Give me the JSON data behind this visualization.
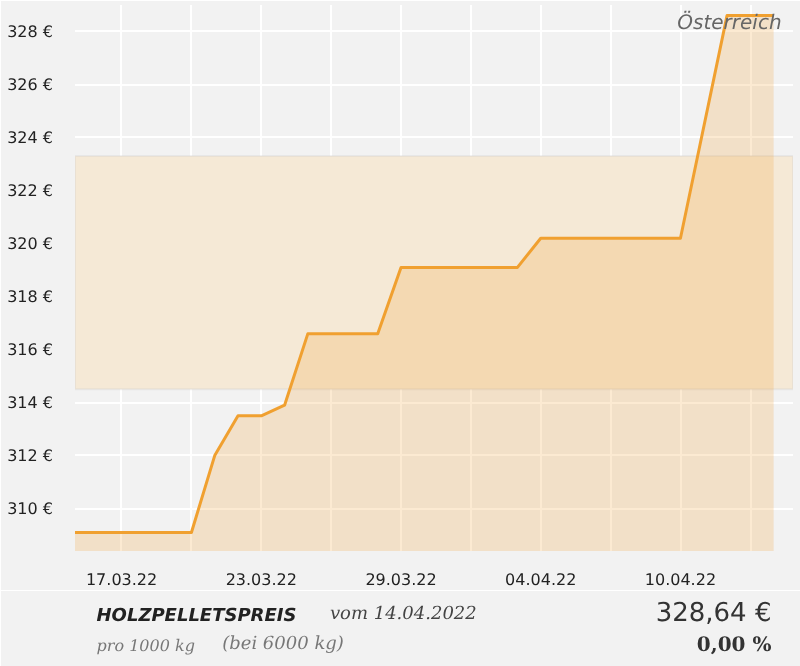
{
  "chart_data": {
    "type": "area",
    "title": "HOLZPELLETSPREIS",
    "subtitle": "vom 14.04.2022",
    "x": [
      "2022-03-15",
      "2022-03-20",
      "2022-03-21",
      "2022-03-22",
      "2022-03-23",
      "2022-03-24",
      "2022-03-25",
      "2022-03-28",
      "2022-03-29",
      "2022-04-03",
      "2022-04-04",
      "2022-04-10",
      "2022-04-12",
      "2022-04-14"
    ],
    "series": [
      {
        "color": "#f0a030",
        "values": [
          309.1,
          309.1,
          312.0,
          313.5,
          313.5,
          313.9,
          316.6,
          316.6,
          319.1,
          319.1,
          320.2,
          320.2,
          328.6,
          328.6
        ]
      }
    ],
    "xlim": [
      "2022-03-15",
      "2022-04-14T20:00"
    ],
    "xticks": [
      {
        "value": "2022-03-17",
        "label": "17.03.22"
      },
      {
        "value": "2022-03-20",
        "label": null
      },
      {
        "value": "2022-03-23",
        "label": "23.03.22"
      },
      {
        "value": "2022-03-26",
        "label": null
      },
      {
        "value": "2022-03-29",
        "label": "29.03.22"
      },
      {
        "value": "2022-04-01",
        "label": null
      },
      {
        "value": "2022-04-04",
        "label": "04.04.22"
      },
      {
        "value": "2022-04-07",
        "label": null
      },
      {
        "value": "2022-04-10",
        "label": "10.04.22"
      },
      {
        "value": "2022-04-13",
        "label": null
      }
    ],
    "ylim": [
      308.4,
      329.0
    ],
    "yticks": [
      {
        "value": 310,
        "label": "310 €"
      },
      {
        "value": 312,
        "label": "312 €"
      },
      {
        "value": 314,
        "label": "314 €"
      },
      {
        "value": 316,
        "label": "316 €"
      },
      {
        "value": 318,
        "label": "318 €"
      },
      {
        "value": 320,
        "label": "320 €"
      },
      {
        "value": 322,
        "label": "322 €"
      },
      {
        "value": 324,
        "label": "324 €"
      },
      {
        "value": 326,
        "label": "326 €"
      },
      {
        "value": 328,
        "label": "328 €"
      }
    ],
    "bands": [
      {
        "axis": "y",
        "from": 314.5,
        "to": 323.3,
        "color": "#f5e9d6"
      }
    ],
    "grid": true,
    "annotations": [
      "Österreich",
      "pro 1000 kg",
      "(bei 6000 kg)",
      "328,64 €",
      "0,00 %"
    ]
  }
}
